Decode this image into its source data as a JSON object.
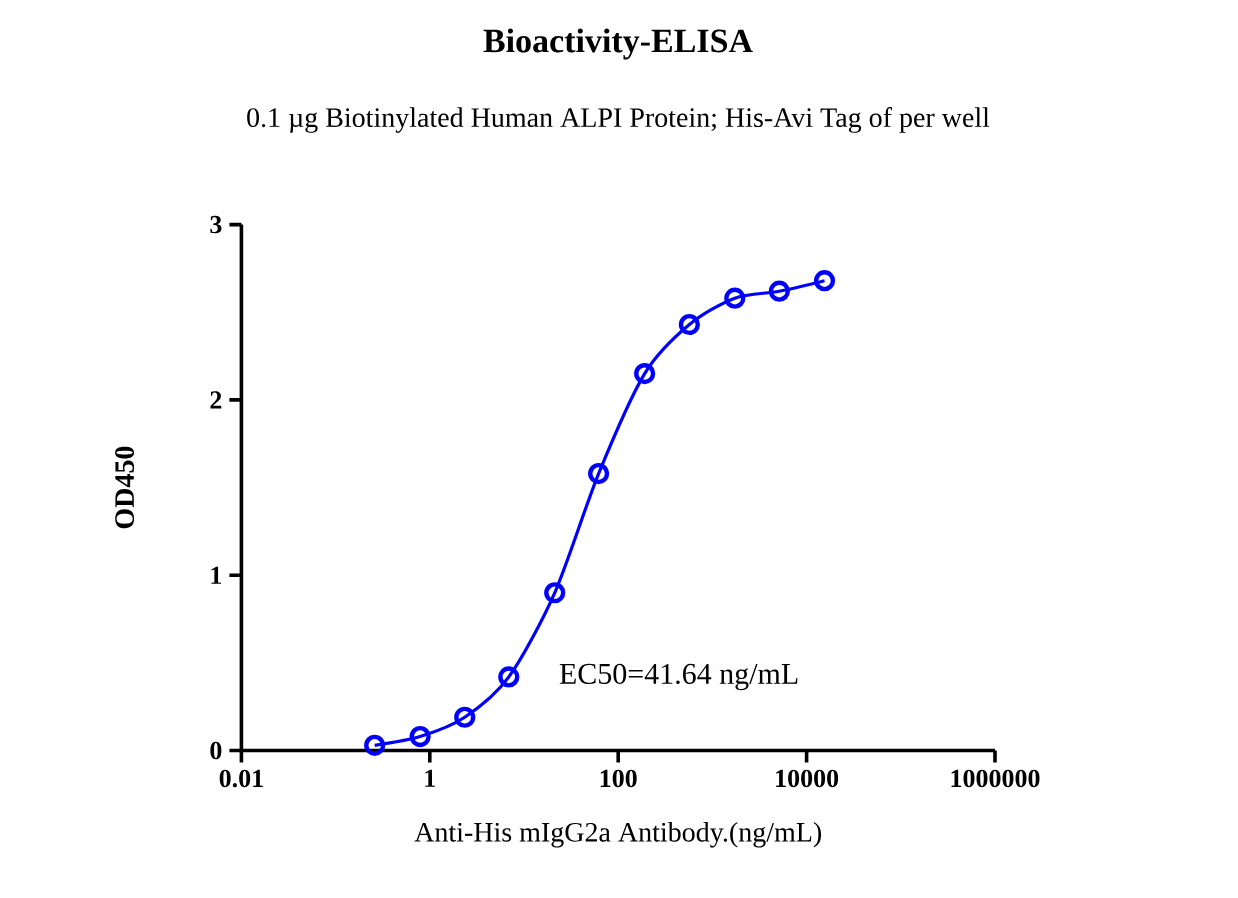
{
  "chart_data": {
    "type": "line",
    "title": "Bioactivity-ELISA",
    "subtitle": "0.1 µg Biotinylated Human ALPI Protein; His-Avi Tag of per well",
    "xlabel": "Anti-His mIgG2a Antibody.(ng/mL)",
    "ylabel": "OD450",
    "annotations": [
      "EC50=41.64 ng/mL"
    ],
    "x": [
      0.26,
      0.79,
      2.35,
      6.9,
      21.2,
      62,
      191,
      570,
      1730,
      5140,
      15500
    ],
    "series": [
      {
        "color": "#0000ff",
        "values": [
          0.03,
          0.08,
          0.19,
          0.42,
          0.9,
          1.58,
          2.15,
          2.43,
          2.58,
          2.62,
          2.68
        ]
      }
    ],
    "log": "x",
    "marker": "circle",
    "xlim": [
      0.01,
      1000000
    ],
    "ylim": [
      0,
      3
    ],
    "xticks": [
      0.01,
      1,
      100,
      10000,
      1000000
    ],
    "yticks": [
      0,
      1,
      2,
      3
    ]
  }
}
